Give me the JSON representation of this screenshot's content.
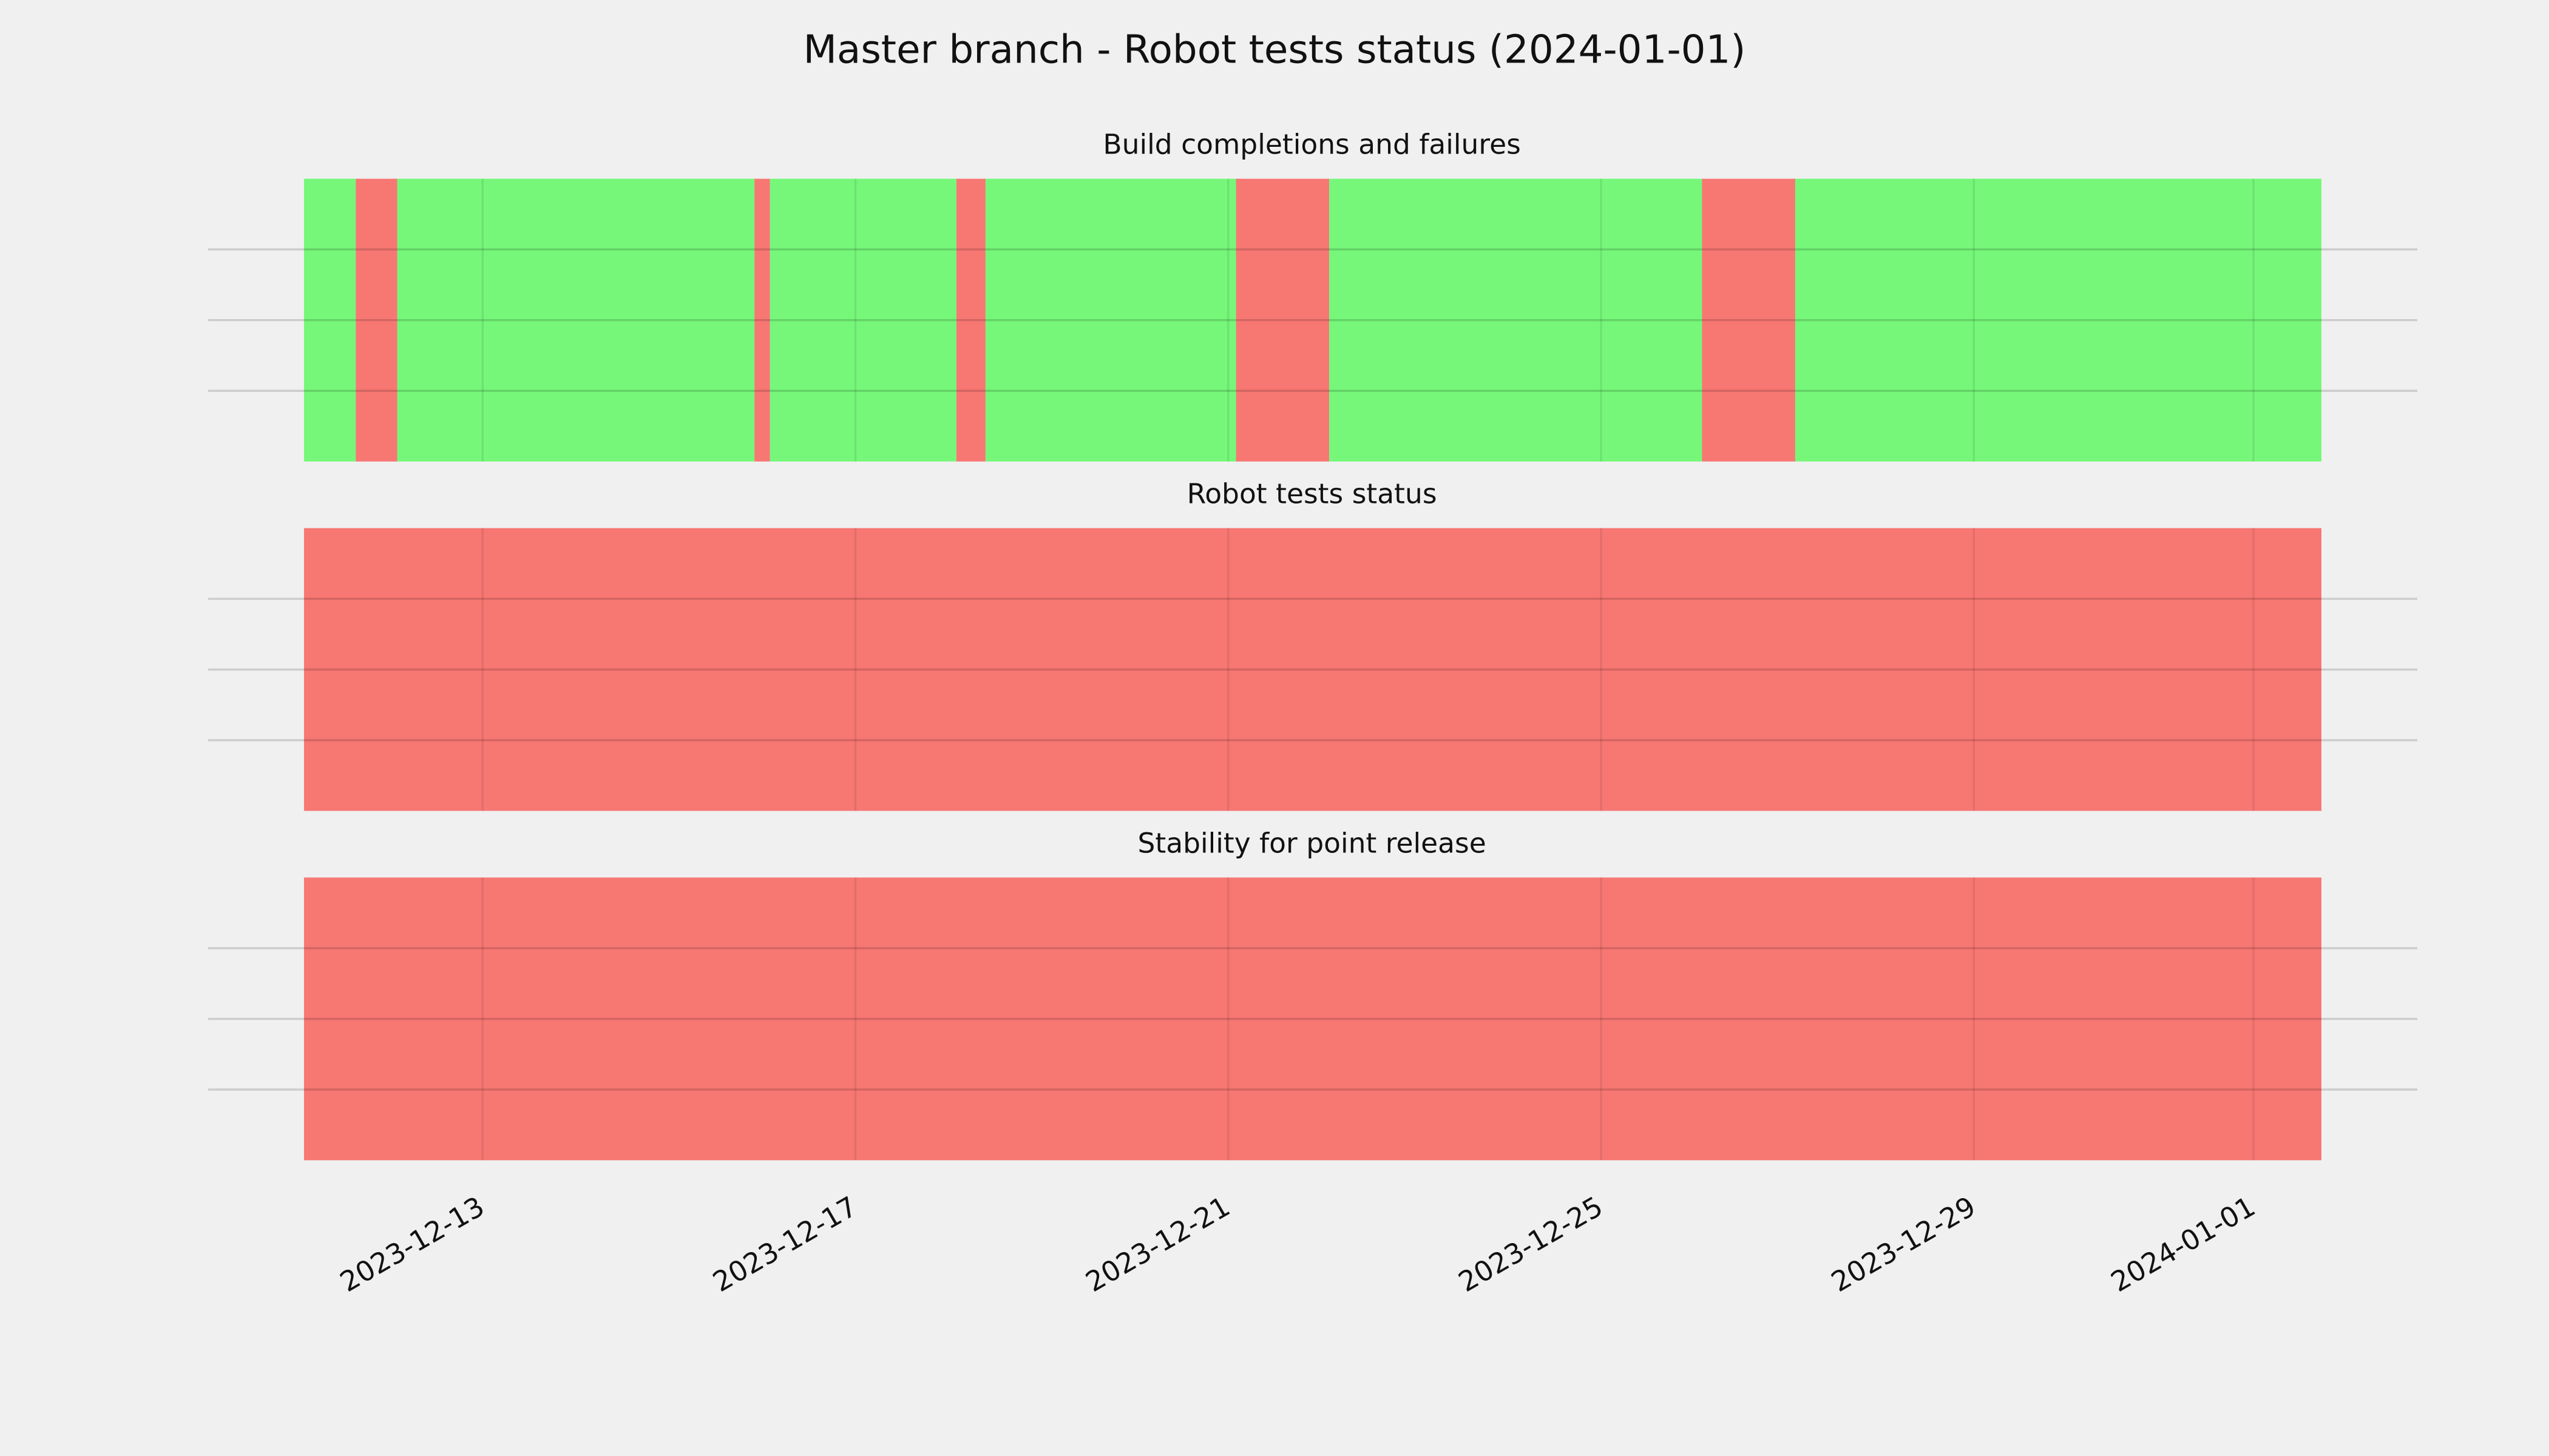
{
  "title": "Master branch - Robot tests status (2024-01-01)",
  "x_axis": {
    "xlim": [
      "2023-12-11T02:00",
      "2024-01-01T17:30"
    ],
    "xticks": [
      "2023-12-13",
      "2023-12-17",
      "2023-12-21",
      "2023-12-25",
      "2023-12-29",
      "2024-01-01"
    ]
  },
  "chart_data": [
    {
      "type": "timeline",
      "title": "Build completions and failures",
      "ylim": [
        0,
        1
      ],
      "yticks": [
        0.25,
        0.5,
        0.75
      ],
      "grid": true,
      "spans": [
        {
          "start": "2023-12-11T02:00",
          "end": "2023-12-11T15:20",
          "color": "#76f77a"
        },
        {
          "start": "2023-12-11T15:20",
          "end": "2023-12-12T02:00",
          "color": "#f77773"
        },
        {
          "start": "2023-12-12T02:00",
          "end": "2023-12-15T22:00",
          "color": "#76f77a"
        },
        {
          "start": "2023-12-15T22:00",
          "end": "2023-12-16T02:00",
          "color": "#f77773"
        },
        {
          "start": "2023-12-16T02:00",
          "end": "2023-12-18T02:00",
          "color": "#76f77a"
        },
        {
          "start": "2023-12-18T02:00",
          "end": "2023-12-18T09:30",
          "color": "#f77773"
        },
        {
          "start": "2023-12-18T09:30",
          "end": "2023-12-21T02:00",
          "color": "#76f77a"
        },
        {
          "start": "2023-12-21T02:00",
          "end": "2023-12-22T02:00",
          "color": "#f77773"
        },
        {
          "start": "2023-12-22T02:00",
          "end": "2023-12-26T02:00",
          "color": "#76f77a"
        },
        {
          "start": "2023-12-26T02:00",
          "end": "2023-12-27T02:00",
          "color": "#f77773"
        },
        {
          "start": "2023-12-27T02:00",
          "end": "2024-01-01T17:30",
          "color": "#76f77a"
        }
      ]
    },
    {
      "type": "timeline",
      "title": "Robot tests status",
      "ylim": [
        0,
        1
      ],
      "yticks": [
        0.25,
        0.5,
        0.75
      ],
      "grid": true,
      "spans": [
        {
          "start": "2023-12-11T02:00",
          "end": "2024-01-01T17:30",
          "color": "#f77773"
        }
      ]
    },
    {
      "type": "timeline",
      "title": "Stability for point release",
      "ylim": [
        0,
        1
      ],
      "yticks": [
        0.25,
        0.5,
        0.75
      ],
      "grid": true,
      "spans": [
        {
          "start": "2023-12-11T02:00",
          "end": "2024-01-01T17:30",
          "color": "#f77773"
        }
      ]
    }
  ]
}
